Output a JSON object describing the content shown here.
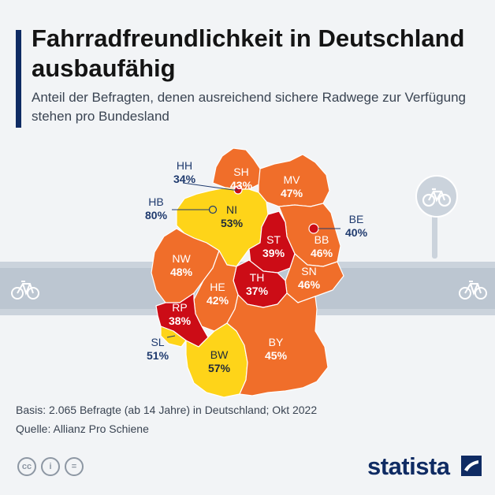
{
  "header": {
    "title": "Fahrradfreundlichkeit in Deutschland ausbaufähig",
    "subtitle": "Anteil der Befragten, denen ausreichend sichere Radwege zur Verfügung stehen pro Bundesland"
  },
  "colors": {
    "dark_red": "#cc0c16",
    "orange": "#f06e2a",
    "yellow": "#fed419",
    "navy": "#0f2b63"
  },
  "regions": [
    {
      "code": "SH",
      "value": "43%"
    },
    {
      "code": "HH",
      "value": "34%"
    },
    {
      "code": "MV",
      "value": "47%"
    },
    {
      "code": "HB",
      "value": "80%"
    },
    {
      "code": "NI",
      "value": "53%"
    },
    {
      "code": "BE",
      "value": "40%"
    },
    {
      "code": "BB",
      "value": "46%"
    },
    {
      "code": "ST",
      "value": "39%"
    },
    {
      "code": "NW",
      "value": "48%"
    },
    {
      "code": "SN",
      "value": "46%"
    },
    {
      "code": "TH",
      "value": "37%"
    },
    {
      "code": "HE",
      "value": "42%"
    },
    {
      "code": "RP",
      "value": "38%"
    },
    {
      "code": "SL",
      "value": "51%"
    },
    {
      "code": "BW",
      "value": "57%"
    },
    {
      "code": "BY",
      "value": "45%"
    }
  ],
  "footer": {
    "basis": "Basis: 2.065 Befragte (ab 14 Jahre) in Deutschland; Okt 2022",
    "source": "Quelle: Allianz Pro Schiene"
  },
  "icons": [
    "cc-icon",
    "attribution-icon",
    "no-derivatives-icon",
    "bicycle-icon"
  ],
  "cc_labels": [
    "cc",
    "i",
    "="
  ],
  "brand": "statista"
}
